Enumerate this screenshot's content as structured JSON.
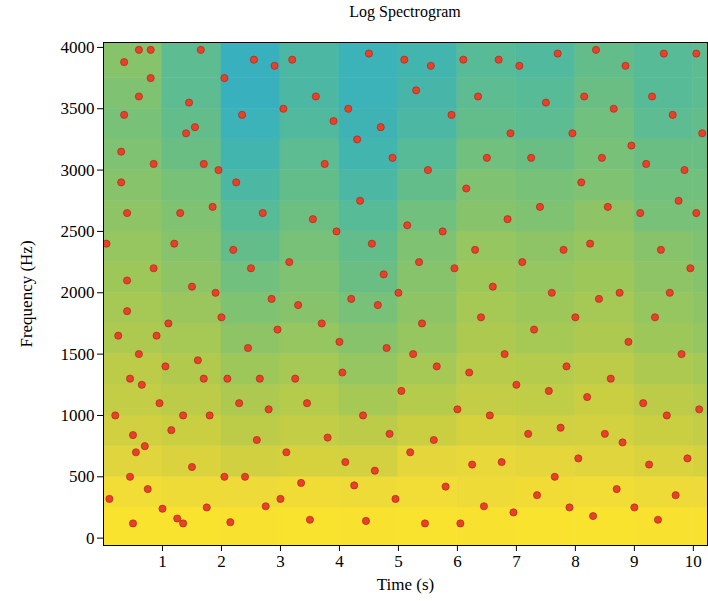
{
  "chart_data": {
    "type": "scatter",
    "title": "Log Spectrogram",
    "xlabel": "Time (s)",
    "ylabel": "Frequency (Hz)",
    "xlim": [
      0,
      10.24
    ],
    "ylim": [
      -60,
      4040
    ],
    "xticks": [
      1,
      2,
      3,
      4,
      5,
      6,
      7,
      8,
      9,
      10
    ],
    "yticks": [
      0,
      500,
      1000,
      1500,
      2000,
      2500,
      3000,
      3500,
      4000
    ],
    "grid": false,
    "marker": "circle",
    "color": "#e8402a",
    "x": [
      0.05,
      0.1,
      0.2,
      0.25,
      0.3,
      0.3,
      0.35,
      0.35,
      0.4,
      0.4,
      0.4,
      0.45,
      0.5,
      0.45,
      0.5,
      0.55,
      0.6,
      0.6,
      0.6,
      0.65,
      0.7,
      0.75,
      0.8,
      0.8,
      0.85,
      0.85,
      0.9,
      0.95,
      1.0,
      1.05,
      1.1,
      1.15,
      1.2,
      1.25,
      1.3,
      1.35,
      1.35,
      1.4,
      1.45,
      1.5,
      1.5,
      1.55,
      1.6,
      1.65,
      1.7,
      1.7,
      1.75,
      1.8,
      1.85,
      1.9,
      1.95,
      2.0,
      2.05,
      2.05,
      2.1,
      2.15,
      2.2,
      2.25,
      2.3,
      2.35,
      2.4,
      2.45,
      2.5,
      2.55,
      2.6,
      2.65,
      2.7,
      2.75,
      2.8,
      2.85,
      2.9,
      2.95,
      3.0,
      3.05,
      3.1,
      3.15,
      3.2,
      3.25,
      3.3,
      3.35,
      3.45,
      3.5,
      3.55,
      3.6,
      3.7,
      3.75,
      3.8,
      3.9,
      3.95,
      4.0,
      4.05,
      4.1,
      4.15,
      4.2,
      4.25,
      4.3,
      4.35,
      4.4,
      4.45,
      4.5,
      4.55,
      4.6,
      4.65,
      4.7,
      4.75,
      4.8,
      4.85,
      4.9,
      4.95,
      5.0,
      5.05,
      5.1,
      5.15,
      5.2,
      5.25,
      5.3,
      5.35,
      5.4,
      5.45,
      5.5,
      5.55,
      5.6,
      5.65,
      5.75,
      5.8,
      5.9,
      5.95,
      6.0,
      6.05,
      6.1,
      6.15,
      6.2,
      6.25,
      6.3,
      6.35,
      6.4,
      6.45,
      6.5,
      6.55,
      6.6,
      6.7,
      6.75,
      6.8,
      6.85,
      6.9,
      6.95,
      7.0,
      7.05,
      7.1,
      7.2,
      7.25,
      7.3,
      7.35,
      7.4,
      7.5,
      7.55,
      7.6,
      7.65,
      7.7,
      7.75,
      7.8,
      7.85,
      7.9,
      7.95,
      8.0,
      8.05,
      8.1,
      8.15,
      8.2,
      8.25,
      8.3,
      8.35,
      8.4,
      8.45,
      8.5,
      8.55,
      8.6,
      8.65,
      8.7,
      8.75,
      8.8,
      8.85,
      8.9,
      8.95,
      9.0,
      9.1,
      9.15,
      9.2,
      9.25,
      9.3,
      9.35,
      9.4,
      9.45,
      9.5,
      9.55,
      9.6,
      9.65,
      9.7,
      9.75,
      9.8,
      9.85,
      9.9,
      9.95,
      10.05,
      10.1,
      10.15,
      10.05
    ],
    "y": [
      2400,
      320,
      1000,
      1650,
      2900,
      3150,
      3450,
      3880,
      2650,
      2100,
      1850,
      1300,
      840,
      500,
      120,
      700,
      3980,
      3600,
      1500,
      1250,
      750,
      400,
      3980,
      3750,
      3050,
      2200,
      1650,
      1100,
      240,
      1400,
      1750,
      880,
      2400,
      160,
      2650,
      1000,
      120,
      3300,
      3550,
      2050,
      580,
      3350,
      1450,
      3980,
      3050,
      1300,
      250,
      1000,
      2700,
      2000,
      3000,
      1800,
      3750,
      500,
      1300,
      130,
      2350,
      2900,
      1100,
      3450,
      500,
      1550,
      2200,
      3900,
      800,
      1300,
      2650,
      260,
      1050,
      1950,
      3850,
      1700,
      320,
      3500,
      700,
      2250,
      3900,
      1300,
      1900,
      450,
      1100,
      150,
      2600,
      3600,
      1750,
      3050,
      820,
      3400,
      2500,
      1600,
      1350,
      620,
      3500,
      1950,
      430,
      3250,
      2750,
      1000,
      140,
      3950,
      2400,
      550,
      1900,
      3350,
      2150,
      1550,
      850,
      3100,
      320,
      2000,
      1200,
      3900,
      2550,
      700,
      1500,
      3650,
      2250,
      1750,
      120,
      3000,
      3850,
      800,
      1400,
      2500,
      420,
      3450,
      2200,
      1050,
      120,
      3900,
      2850,
      1350,
      600,
      2350,
      3600,
      1800,
      260,
      3100,
      1000,
      2050,
      3900,
      620,
      1500,
      2600,
      3300,
      210,
      1250,
      3850,
      2250,
      850,
      3100,
      1700,
      350,
      2700,
      3550,
      1200,
      2000,
      500,
      3950,
      900,
      2350,
      1400,
      250,
      3300,
      1800,
      650,
      2900,
      3600,
      1150,
      2400,
      180,
      3980,
      1950,
      3100,
      850,
      2700,
      1300,
      3500,
      400,
      2000,
      780,
      3850,
      1600,
      3200,
      250,
      2650,
      1100,
      3050,
      600,
      3600,
      1800,
      150,
      2350,
      3950,
      1000,
      2000,
      3450,
      350,
      2750,
      1500,
      3000,
      650,
      2200,
      2650,
      1050,
      3300,
      3950
    ],
    "cells": {
      "x_edges": [
        0,
        1,
        2,
        3,
        4,
        5,
        6,
        7,
        8,
        9,
        10,
        10.24
      ],
      "y_edges": [
        -60,
        250,
        500,
        750,
        1000,
        1250,
        1500,
        1750,
        2000,
        2250,
        2500,
        2750,
        3000,
        3250,
        3500,
        3750,
        4040
      ],
      "zlim": [
        0,
        1
      ],
      "values": [
        [
          0.97,
          0.97,
          0.96,
          0.97,
          0.96,
          0.97,
          0.96,
          0.97,
          0.97,
          0.96,
          0.96
        ],
        [
          0.88,
          0.86,
          0.85,
          0.87,
          0.86,
          0.88,
          0.86,
          0.87,
          0.88,
          0.86,
          0.85
        ],
        [
          0.78,
          0.76,
          0.72,
          0.74,
          0.73,
          0.8,
          0.82,
          0.8,
          0.78,
          0.76,
          0.74
        ],
        [
          0.72,
          0.7,
          0.66,
          0.68,
          0.66,
          0.7,
          0.74,
          0.72,
          0.73,
          0.7,
          0.68
        ],
        [
          0.68,
          0.66,
          0.62,
          0.64,
          0.6,
          0.64,
          0.68,
          0.67,
          0.7,
          0.66,
          0.64
        ],
        [
          0.66,
          0.63,
          0.58,
          0.6,
          0.56,
          0.6,
          0.65,
          0.64,
          0.66,
          0.62,
          0.6
        ],
        [
          0.62,
          0.6,
          0.54,
          0.56,
          0.52,
          0.56,
          0.62,
          0.6,
          0.62,
          0.58,
          0.56
        ],
        [
          0.6,
          0.57,
          0.5,
          0.52,
          0.48,
          0.54,
          0.6,
          0.58,
          0.6,
          0.56,
          0.54
        ],
        [
          0.58,
          0.54,
          0.46,
          0.5,
          0.44,
          0.52,
          0.58,
          0.56,
          0.58,
          0.54,
          0.52
        ],
        [
          0.56,
          0.52,
          0.42,
          0.48,
          0.42,
          0.5,
          0.56,
          0.54,
          0.56,
          0.52,
          0.5
        ],
        [
          0.54,
          0.5,
          0.38,
          0.45,
          0.38,
          0.46,
          0.52,
          0.5,
          0.54,
          0.48,
          0.48
        ],
        [
          0.52,
          0.48,
          0.34,
          0.42,
          0.34,
          0.42,
          0.5,
          0.48,
          0.5,
          0.46,
          0.46
        ],
        [
          0.5,
          0.44,
          0.3,
          0.4,
          0.3,
          0.38,
          0.46,
          0.44,
          0.48,
          0.44,
          0.44
        ],
        [
          0.48,
          0.42,
          0.26,
          0.36,
          0.28,
          0.34,
          0.42,
          0.4,
          0.46,
          0.4,
          0.42
        ],
        [
          0.5,
          0.4,
          0.24,
          0.34,
          0.26,
          0.32,
          0.4,
          0.38,
          0.44,
          0.38,
          0.4
        ],
        [
          0.52,
          0.4,
          0.24,
          0.34,
          0.26,
          0.3,
          0.38,
          0.36,
          0.42,
          0.38,
          0.4
        ]
      ]
    }
  }
}
